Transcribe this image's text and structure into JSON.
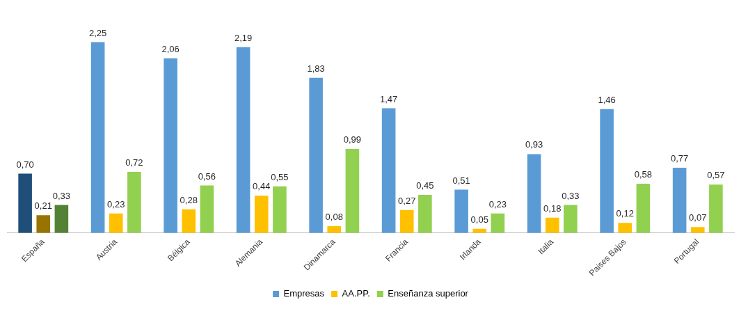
{
  "chart_data": {
    "type": "bar",
    "categories": [
      "España",
      "Austria",
      "Bélgica",
      "Alemania",
      "Dinamarca",
      "Francia",
      "Irlanda",
      "Italia",
      "Paises Bajos",
      "Portugal"
    ],
    "series": [
      {
        "name": "Empresas",
        "color": "#5b9bd5",
        "colors": [
          "#1f4e79",
          "#5b9bd5",
          "#5b9bd5",
          "#5b9bd5",
          "#5b9bd5",
          "#5b9bd5",
          "#5b9bd5",
          "#5b9bd5",
          "#5b9bd5",
          "#5b9bd5"
        ],
        "values": [
          0.7,
          2.25,
          2.06,
          2.19,
          1.83,
          1.47,
          0.51,
          0.93,
          1.46,
          0.77
        ],
        "value_labels": [
          "0,70",
          "2,25",
          "2,06",
          "2,19",
          "1,83",
          "1,47",
          "0,51",
          "0,93",
          "1,46",
          "0,77"
        ]
      },
      {
        "name": "AA.PP.",
        "color": "#ffc000",
        "colors": [
          "#997300",
          "#ffc000",
          "#ffc000",
          "#ffc000",
          "#ffc000",
          "#ffc000",
          "#ffc000",
          "#ffc000",
          "#ffc000",
          "#ffc000"
        ],
        "values": [
          0.21,
          0.23,
          0.28,
          0.44,
          0.08,
          0.27,
          0.05,
          0.18,
          0.12,
          0.07
        ],
        "value_labels": [
          "0,21",
          "0,23",
          "0,28",
          "0,44",
          "0,08",
          "0,27",
          "0,05",
          "0,18",
          "0,12",
          "0,07"
        ]
      },
      {
        "name": "Enseñanza superior",
        "color": "#92d050",
        "colors": [
          "#548235",
          "#92d050",
          "#92d050",
          "#92d050",
          "#92d050",
          "#92d050",
          "#92d050",
          "#92d050",
          "#92d050",
          "#92d050"
        ],
        "values": [
          0.33,
          0.72,
          0.56,
          0.55,
          0.99,
          0.45,
          0.23,
          0.33,
          0.58,
          0.57
        ],
        "value_labels": [
          "0,33",
          "0,72",
          "0,56",
          "0,55",
          "0,99",
          "0,45",
          "0,23",
          "0,33",
          "0,58",
          "0,57"
        ]
      }
    ],
    "legend": "bottom",
    "grid": false
  }
}
